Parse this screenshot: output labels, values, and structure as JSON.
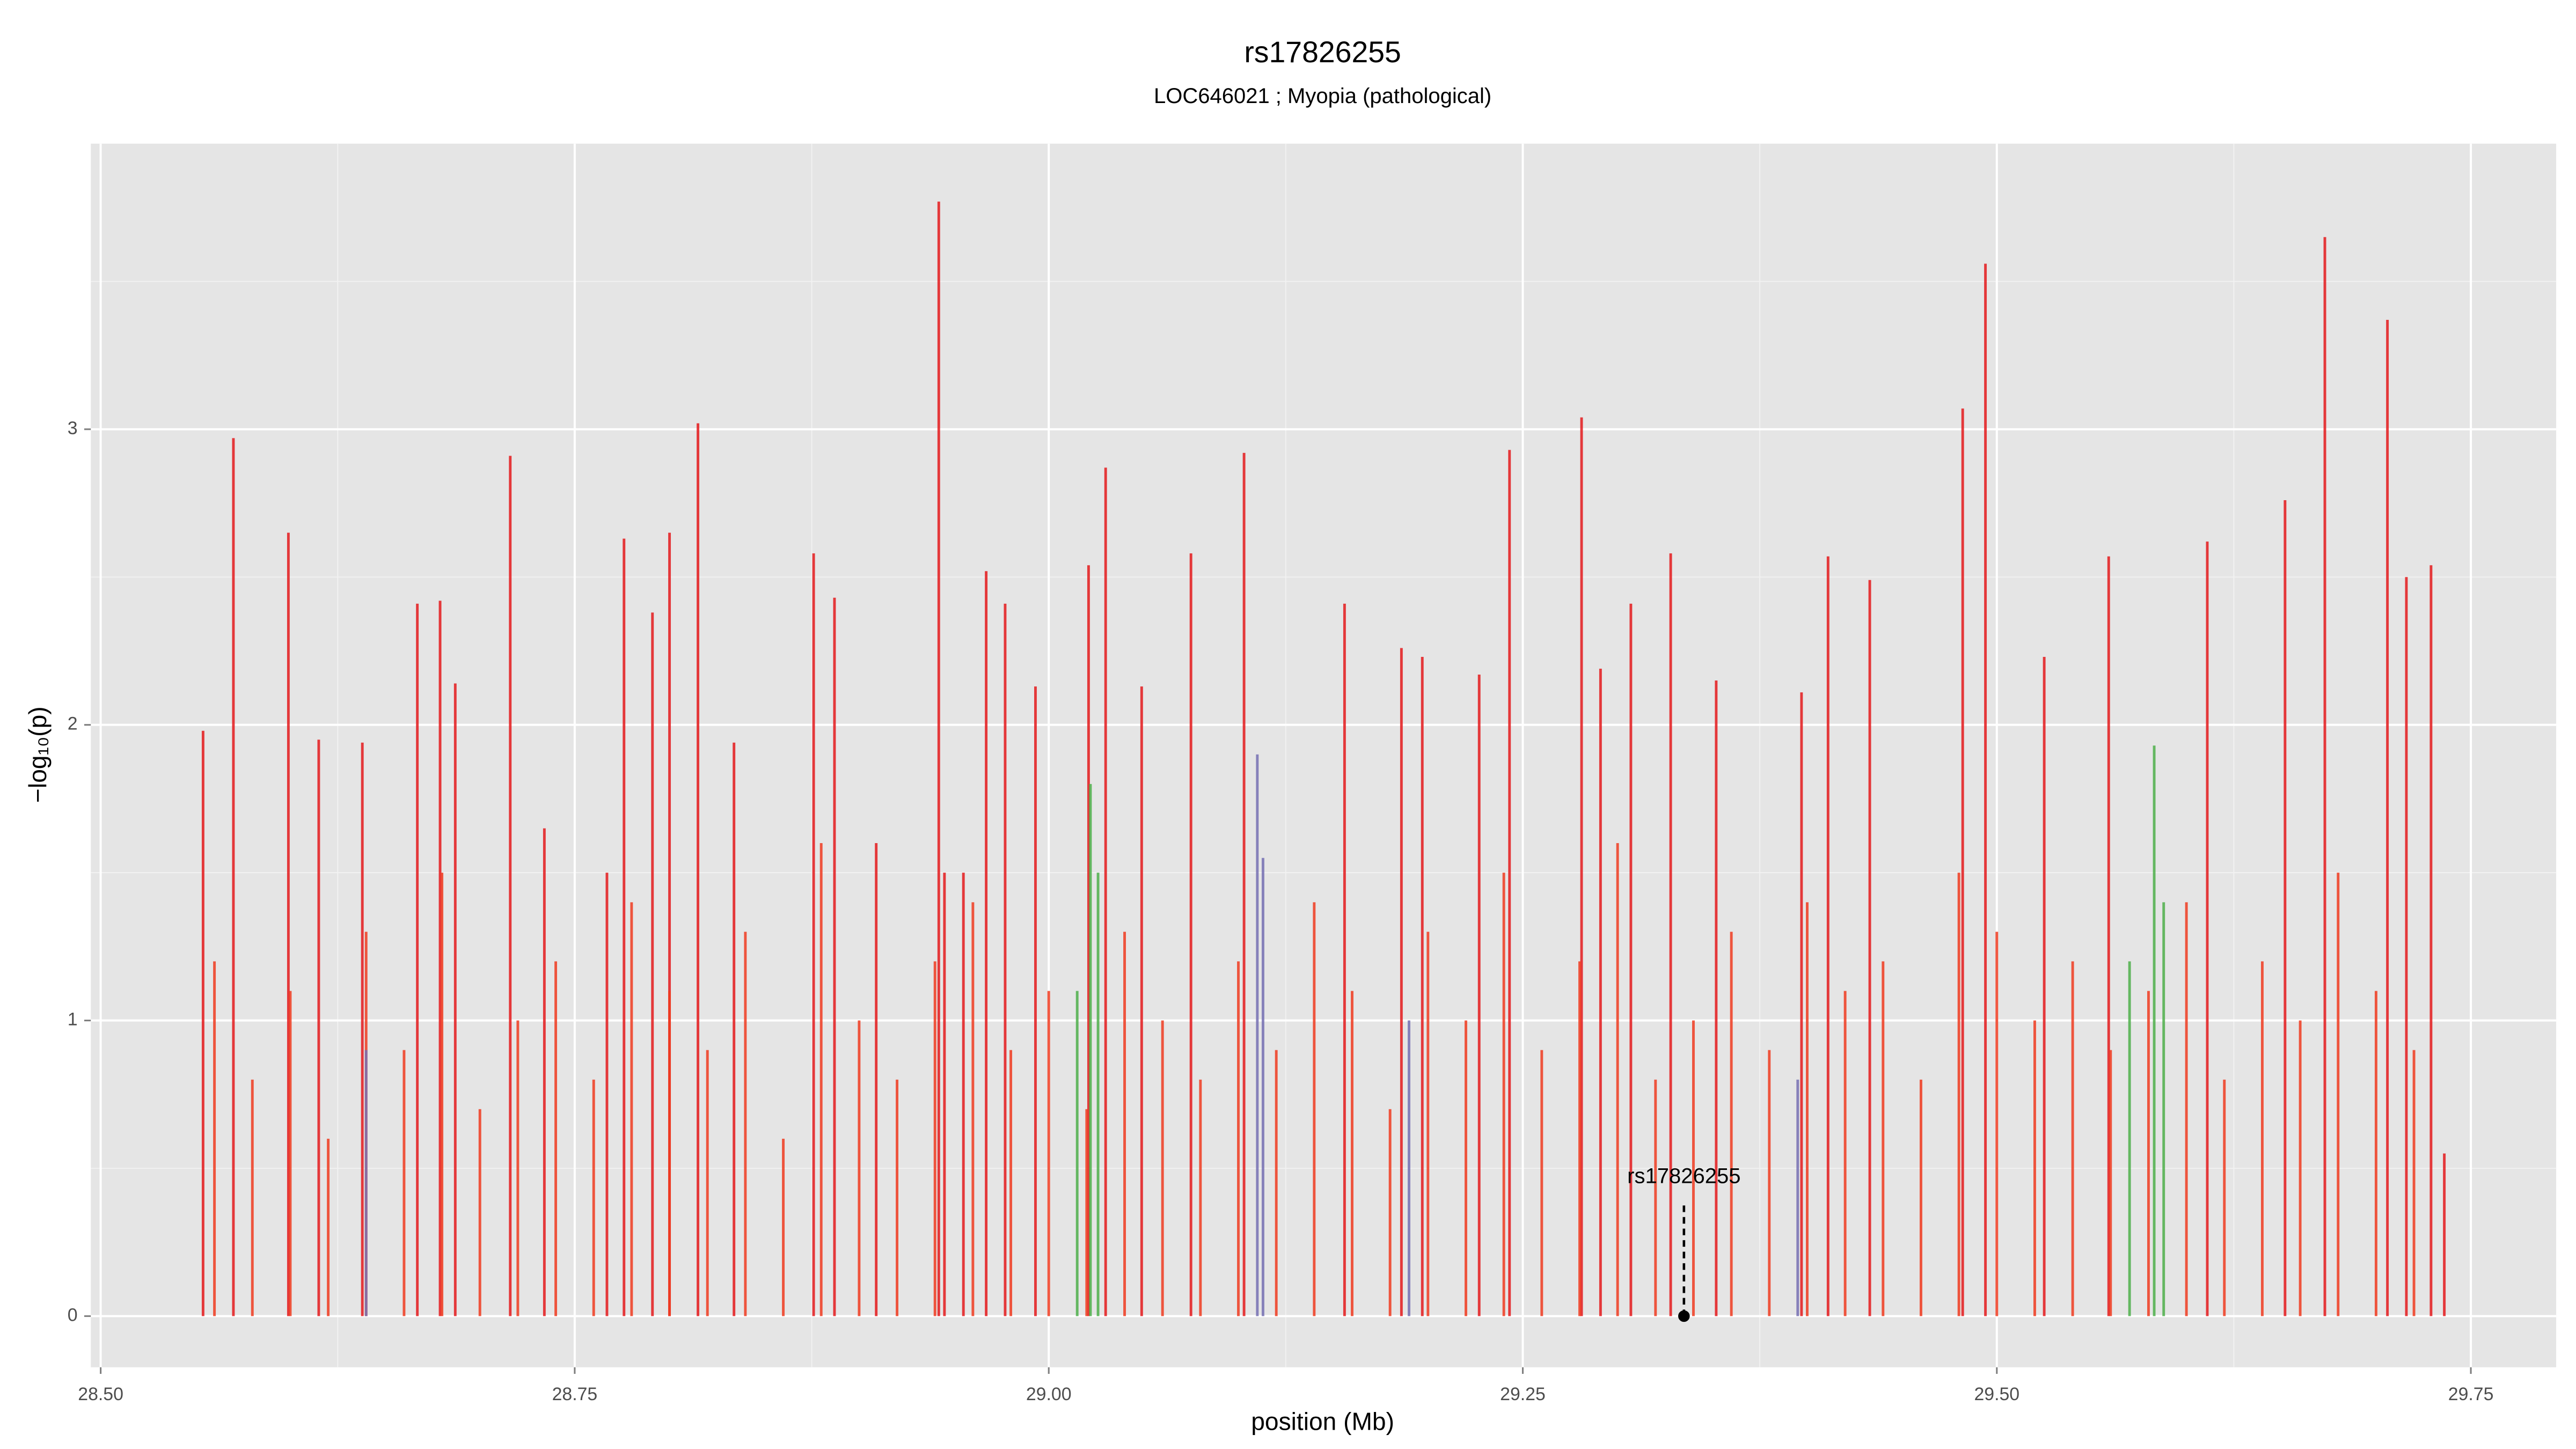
{
  "chart_data": {
    "type": "spike",
    "title": "rs17826255",
    "subtitle": "LOC646021 ; Myopia (pathological)",
    "x_label": "position (Mb)",
    "y_label": "−log₁₀(p)",
    "xlim": [
      28.4948,
      29.795
    ],
    "ylim": [
      -0.173,
      3.966
    ],
    "xticks": [
      {
        "value": 28.5,
        "label": "28.50"
      },
      {
        "value": 28.75,
        "label": "28.75"
      },
      {
        "value": 29.0,
        "label": "29.00"
      },
      {
        "value": 29.25,
        "label": "29.25"
      },
      {
        "value": 29.5,
        "label": "29.50"
      },
      {
        "value": 29.75,
        "label": "29.75"
      }
    ],
    "yticks": [
      0,
      1,
      2,
      3
    ],
    "minor_xticks": [
      28.625,
      28.875,
      29.125,
      29.375,
      29.625
    ],
    "minor_yticks": [
      0.5,
      1.5,
      2.5,
      3.5
    ],
    "grid": true,
    "series": [
      {
        "color": "#e41a1c",
        "x": [
          28.554,
          28.57,
          28.599,
          28.615,
          28.638,
          28.667,
          28.679,
          28.687,
          28.716,
          28.734,
          28.767,
          28.776,
          28.791,
          28.8,
          28.815,
          28.834,
          28.876,
          28.887,
          28.909,
          28.942,
          28.945,
          28.955,
          28.967,
          28.977,
          28.993,
          29.021,
          29.03,
          29.049,
          29.075,
          29.103,
          29.156,
          29.186,
          29.197,
          29.227,
          29.243,
          29.281,
          29.291,
          29.307,
          29.328,
          29.352,
          29.397,
          29.411,
          29.433,
          29.482,
          29.494,
          29.525,
          29.559,
          29.611,
          29.652,
          29.673,
          29.706,
          29.716,
          29.729,
          29.736
        ],
        "values": [
          1.98,
          2.97,
          2.65,
          1.95,
          1.94,
          2.41,
          2.42,
          2.14,
          2.91,
          1.65,
          1.5,
          2.63,
          2.38,
          2.65,
          3.02,
          1.94,
          2.58,
          2.43,
          1.6,
          3.77,
          1.5,
          1.5,
          2.52,
          2.41,
          2.13,
          2.54,
          2.87,
          2.13,
          2.58,
          2.92,
          2.41,
          2.26,
          2.23,
          2.17,
          2.93,
          3.04,
          2.19,
          2.41,
          2.58,
          2.15,
          2.11,
          2.57,
          2.49,
          3.07,
          3.56,
          2.23,
          2.57,
          2.62,
          2.76,
          3.65,
          3.37,
          2.5,
          2.54,
          0.55
        ]
      },
      {
        "color": "#f03b20",
        "x": [
          28.56,
          28.58,
          28.6,
          28.62,
          28.64,
          28.66,
          28.68,
          28.7,
          28.72,
          28.74,
          28.76,
          28.78,
          28.8,
          28.82,
          28.84,
          28.86,
          28.88,
          28.9,
          28.92,
          28.94,
          28.96,
          28.98,
          29.0,
          29.02,
          29.04,
          29.06,
          29.08,
          29.1,
          29.12,
          29.14,
          29.16,
          29.18,
          29.2,
          29.22,
          29.24,
          29.26,
          29.28,
          29.3,
          29.32,
          29.34,
          29.36,
          29.38,
          29.4,
          29.42,
          29.44,
          29.46,
          29.48,
          29.5,
          29.52,
          29.54,
          29.56,
          29.58,
          29.6,
          29.62,
          29.64,
          29.66,
          29.68,
          29.7,
          29.72
        ],
        "values": [
          1.2,
          0.8,
          1.1,
          0.6,
          1.3,
          0.9,
          1.5,
          0.7,
          1.0,
          1.2,
          0.8,
          1.4,
          1.1,
          0.9,
          1.3,
          0.6,
          1.6,
          1.0,
          0.8,
          1.2,
          1.4,
          0.9,
          1.1,
          0.7,
          1.3,
          1.0,
          0.8,
          1.2,
          0.9,
          1.4,
          1.1,
          0.7,
          1.3,
          1.0,
          1.5,
          0.9,
          1.2,
          1.6,
          0.8,
          1.0,
          1.3,
          0.9,
          1.4,
          1.1,
          1.2,
          0.8,
          1.5,
          1.3,
          1.0,
          1.2,
          0.9,
          1.1,
          1.4,
          0.8,
          1.2,
          1.0,
          1.5,
          1.1,
          0.9
        ]
      },
      {
        "color": "#4daf4a",
        "x": [
          29.015,
          29.022,
          29.026,
          29.57,
          29.583,
          29.588
        ],
        "values": [
          1.1,
          1.8,
          1.5,
          1.2,
          1.93,
          1.4
        ]
      },
      {
        "color": "#7570b3",
        "x": [
          28.64,
          29.11,
          29.113,
          29.19,
          29.395
        ],
        "values": [
          0.9,
          1.9,
          1.55,
          1.0,
          0.8
        ]
      }
    ],
    "annotation": {
      "text": "rs17826255",
      "x": 29.335,
      "y": 0,
      "line_top": 0.38
    }
  }
}
